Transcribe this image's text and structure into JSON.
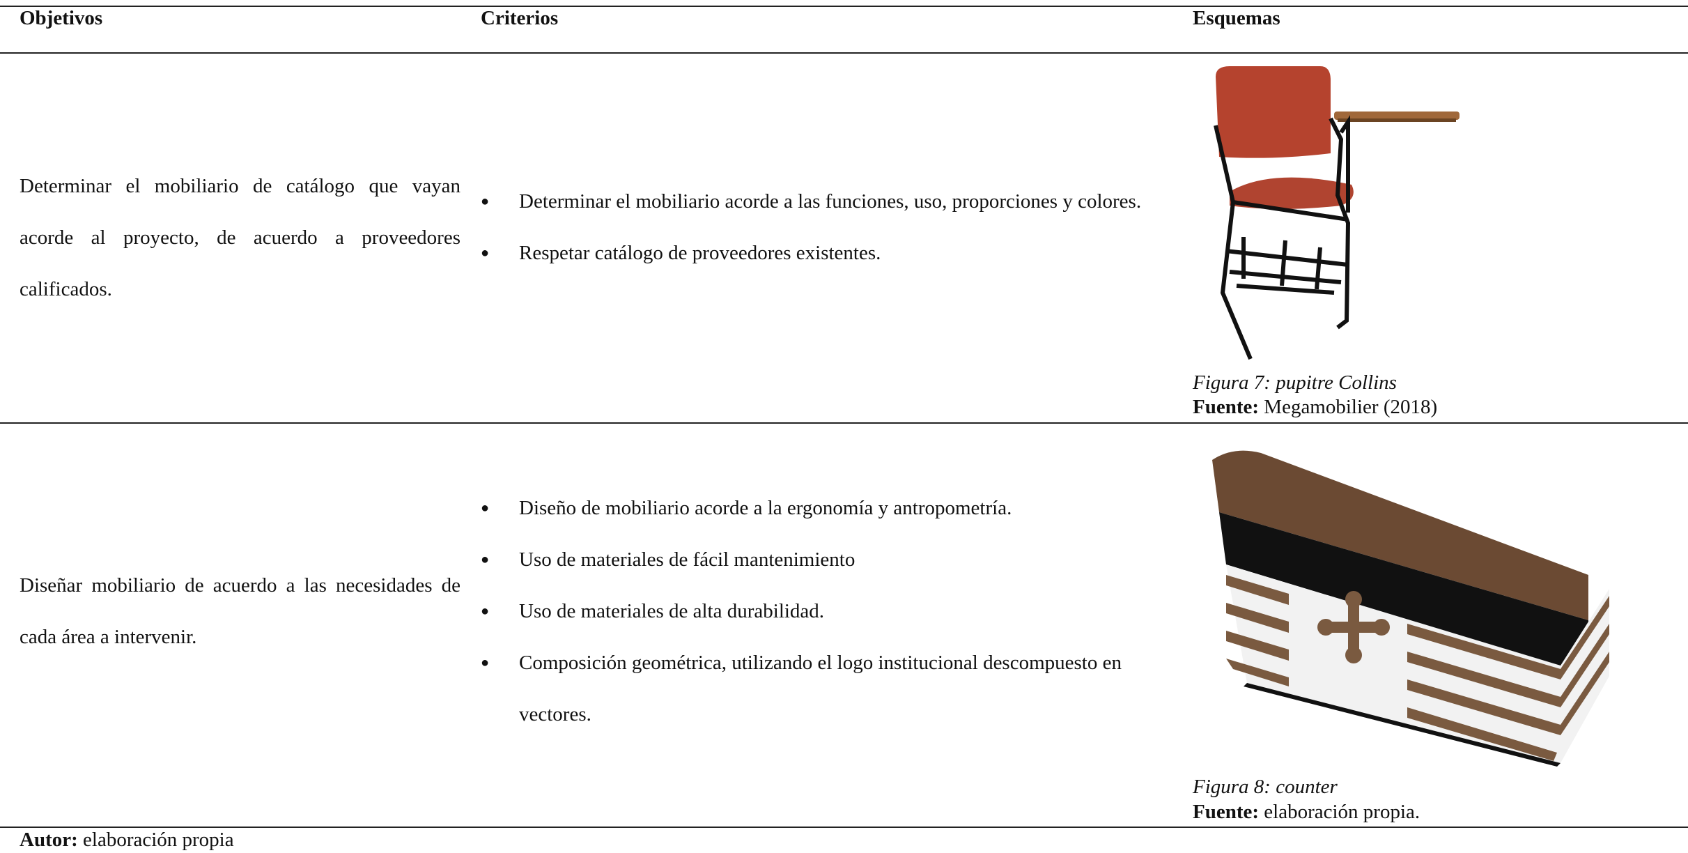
{
  "table": {
    "header": [
      "Objetivos",
      "Criterios",
      "Esquemas"
    ],
    "rows": [
      {
        "objective": "Determinar el mobiliario de catálogo que vayan acorde al proyecto, de acuerdo a proveedores calificados.",
        "criteria": [
          "Determinar el mobiliario acorde a las funciones, uso, proporciones y colores.",
          "Respetar catálogo de proveedores existentes."
        ],
        "figure": {
          "caption": "Figura 7: pupitre Collins",
          "source_label": "Fuente:",
          "source": "Megamobilier (2018)"
        }
      },
      {
        "objective": "Diseñar mobiliario de acuerdo a las necesidades de cada área a intervenir.",
        "criteria": [
          "Diseño de mobiliario acorde a la ergonomía y antropometría.",
          "Uso de materiales de fácil mantenimiento",
          "Uso de materiales de alta durabilidad.",
          "Composición geométrica, utilizando el logo institucional descompuesto en vectores."
        ],
        "figure": {
          "caption": "Figura 8: counter",
          "source_label": "Fuente:",
          "source": "elaboración propia."
        }
      }
    ]
  },
  "footer": {
    "label": "Autor:",
    "text": "elaboración propia"
  }
}
